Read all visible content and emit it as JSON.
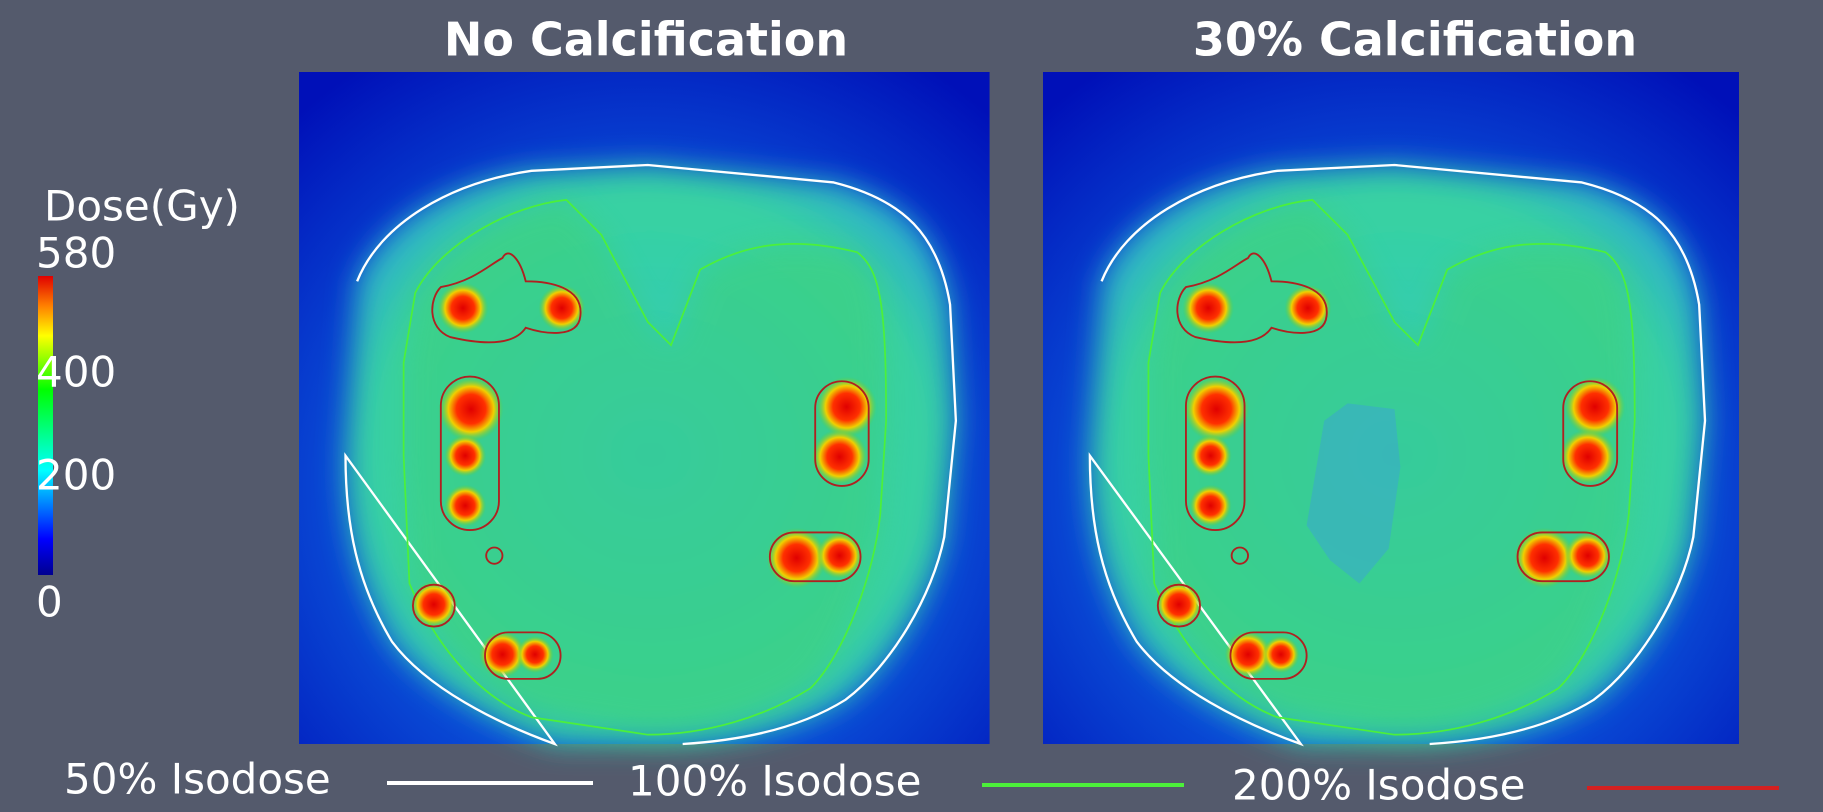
{
  "panels": [
    {
      "title": "No Calcification"
    },
    {
      "title": "30% Calcification"
    }
  ],
  "colorbar": {
    "label": "Dose(Gy)",
    "range": [
      0,
      580
    ],
    "ticks": [
      580,
      400,
      200,
      0
    ]
  },
  "legend": [
    {
      "label": "50% Isodose",
      "color": "#ffffff"
    },
    {
      "label": "100% Isodose",
      "color": "#4cf03a"
    },
    {
      "label": "200% Isodose",
      "color": "#d42020"
    }
  ]
}
